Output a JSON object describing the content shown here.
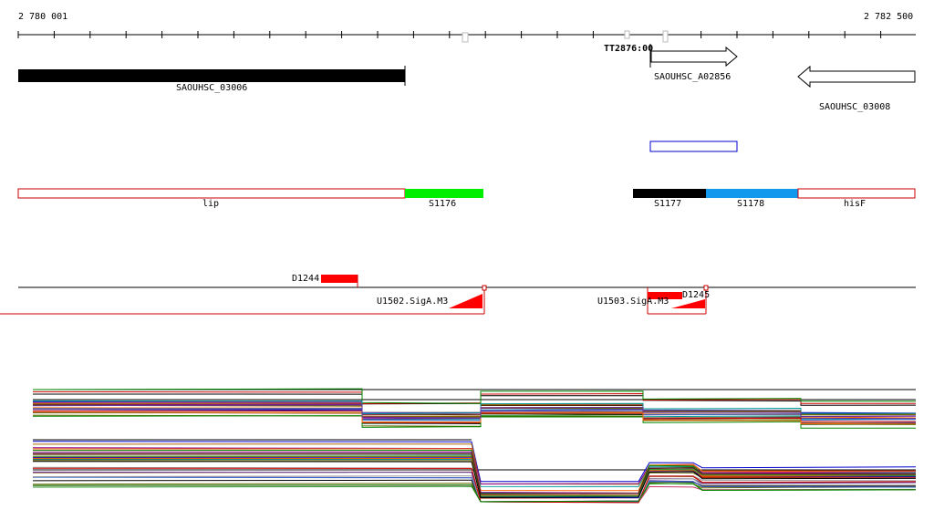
{
  "coords": {
    "start": "2 780 001",
    "end": "2 782 500"
  },
  "terminator": {
    "label": "TT2876:00"
  },
  "genes": [
    {
      "id": "gene-saouhsc-03006",
      "name": "SAOUHSC_03006",
      "fill": "#000000",
      "strand": "+"
    },
    {
      "id": "gene-saouhsc-a02856",
      "name": "SAOUHSC_A02856",
      "fill": "#ffffff",
      "strand": "+"
    },
    {
      "id": "gene-saouhsc-03008",
      "name": "SAOUHSC_03008",
      "fill": "#ffffff",
      "strand": "-"
    }
  ],
  "segments": [
    {
      "id": "segment-lip",
      "name": "lip",
      "fill": "#ffffff",
      "stroke": "#cc0000"
    },
    {
      "id": "segment-s1176",
      "name": "S1176",
      "fill": "#00ee00",
      "stroke": "#00ee00"
    },
    {
      "id": "segment-s1177",
      "name": "S1177",
      "fill": "#000000",
      "stroke": "#000000"
    },
    {
      "id": "segment-s1178",
      "name": "S1178",
      "fill": "#1199ee",
      "stroke": "#1199ee"
    },
    {
      "id": "segment-hisf",
      "name": "hisF",
      "fill": "#ffffff",
      "stroke": "#cc0000"
    }
  ],
  "features": [
    {
      "id": "d1244",
      "name": "D1244"
    },
    {
      "id": "d1245",
      "name": "D1245"
    },
    {
      "id": "u1502",
      "name": "U1502.SigA.M3"
    },
    {
      "id": "u1503",
      "name": "U1503.SigA.M3"
    }
  ],
  "colors": {
    "red": "#ff0000",
    "darkred": "#cc0000",
    "blue": "#0000cc"
  }
}
